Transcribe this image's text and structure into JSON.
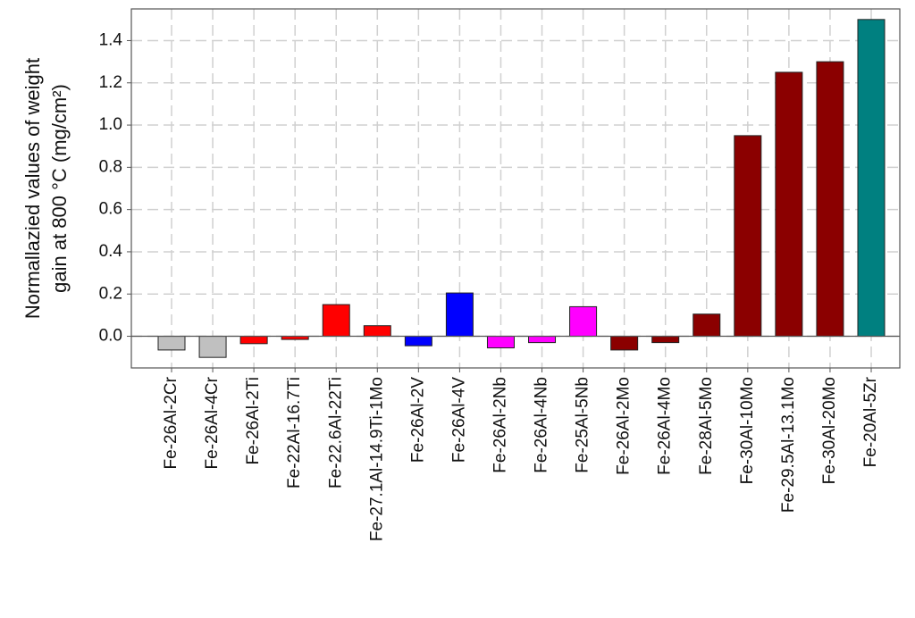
{
  "chart_data": {
    "type": "bar",
    "y_label_lines": [
      "Normallazied values of weight",
      "gain at 800 °C (mg/cm²)"
    ],
    "categories": [
      "Fe-26Al-2Cr",
      "Fe-26Al-4Cr",
      "Fe-26Al-2Ti",
      "Fe-22Al-16.7Ti",
      "Fe-22.6Al-22Ti",
      "Fe-27.1Al-14.9Ti-1Mo",
      "Fe-26Al-2V",
      "Fe-26Al-4V",
      "Fe-26Al-2Nb",
      "Fe-26Al-4Nb",
      "Fe-25Al-5Nb",
      "Fe-26Al-2Mo",
      "Fe-26Al-4Mo",
      "Fe-28Al-5Mo",
      "Fe-30Al-10Mo",
      "Fe-29.5Al-13.1Mo",
      "Fe-30Al-20Mo",
      "Fe-20Al-5Zr"
    ],
    "values": [
      -0.065,
      -0.1,
      -0.035,
      -0.015,
      0.15,
      0.05,
      -0.045,
      0.205,
      -0.055,
      -0.03,
      0.14,
      -0.065,
      -0.03,
      0.105,
      0.95,
      1.25,
      1.3,
      1.5
    ],
    "colors": [
      "#c0c0c0",
      "#c0c0c0",
      "#ff0000",
      "#ff0000",
      "#ff0000",
      "#ff0000",
      "#0000ff",
      "#0000ff",
      "#ff00ff",
      "#ff00ff",
      "#ff00ff",
      "#8b0000",
      "#8b0000",
      "#8b0000",
      "#8b0000",
      "#8b0000",
      "#8b0000",
      "#008080"
    ],
    "ylim": [
      -0.15,
      1.55
    ],
    "yticks": [
      {
        "value": 0,
        "label": "0.0"
      },
      0.2,
      0.4,
      0.6,
      0.8,
      {
        "value": 1,
        "label": "1.0"
      },
      1.2,
      1.4
    ],
    "grid": true
  }
}
